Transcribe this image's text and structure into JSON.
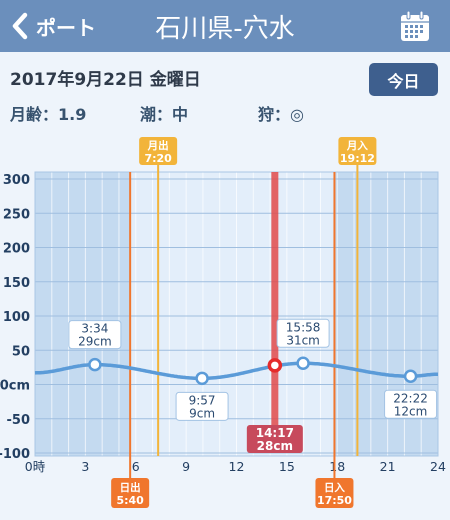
{
  "header": {
    "back_label": "ポート",
    "title": "石川県-穴水",
    "back_icon": "chevron-left-icon",
    "calendar_icon": "calendar-icon"
  },
  "date_row": {
    "date": "2017年9月22日 金曜日",
    "today_button": "今日"
  },
  "info": {
    "moon_age": "月齢：1.9",
    "tide": "潮：中",
    "fishing": "狩：◎"
  },
  "colors": {
    "header_bg": "#6b8fbc",
    "today_button_bg": "#3e5f8e",
    "night_bg": "#c4daf0",
    "day_bg": "#e3eefa",
    "tide_line": "#5b9bd8",
    "sun_marker": "#f0762d",
    "moon_marker": "#f2b43a",
    "current_marker": "#e24a4a",
    "current_label_bg": "#c74a5c"
  },
  "chart_data": {
    "type": "line",
    "xlim": [
      0,
      24
    ],
    "ylim": [
      -100,
      300
    ],
    "grid": true,
    "x_ticks": [
      {
        "value": 0,
        "label": "0時"
      },
      {
        "value": 3,
        "label": "3"
      },
      {
        "value": 6,
        "label": "6"
      },
      {
        "value": 9,
        "label": "9"
      },
      {
        "value": 12,
        "label": "12"
      },
      {
        "value": 15,
        "label": "15"
      },
      {
        "value": 18,
        "label": "18"
      },
      {
        "value": 21,
        "label": "21"
      },
      {
        "value": 24,
        "label": "24"
      }
    ],
    "y_ticks": [
      {
        "value": 300,
        "label": "300"
      },
      {
        "value": 250,
        "label": "250"
      },
      {
        "value": 200,
        "label": "200"
      },
      {
        "value": 150,
        "label": "150"
      },
      {
        "value": 100,
        "label": "100"
      },
      {
        "value": 50,
        "label": "50"
      },
      {
        "value": 0,
        "label": "0cm"
      },
      {
        "value": -50,
        "label": "-50"
      },
      {
        "value": -100,
        "label": "-100"
      }
    ],
    "series": [
      {
        "x": [
          0,
          3.567,
          9.95,
          15.967,
          22.367,
          24
        ],
        "y": [
          17,
          29,
          9,
          31,
          12,
          15
        ]
      }
    ],
    "extrema": [
      {
        "time": "3:34",
        "height": "29cm",
        "value": 29
      },
      {
        "time": "9:57",
        "height": "9cm",
        "value": 9
      },
      {
        "time": "15:58",
        "height": "31cm",
        "value": 31
      },
      {
        "time": "22:22",
        "height": "12cm",
        "value": 12
      }
    ],
    "current": {
      "time": "14:17",
      "height": "28cm",
      "value": 28
    },
    "sunrise": {
      "label": "日出",
      "time": "5:40"
    },
    "sunset": {
      "label": "日入",
      "time": "17:50"
    },
    "moonrise": {
      "label": "月出",
      "time": "7:20"
    },
    "moonset": {
      "label": "月入",
      "time": "19:12"
    }
  }
}
